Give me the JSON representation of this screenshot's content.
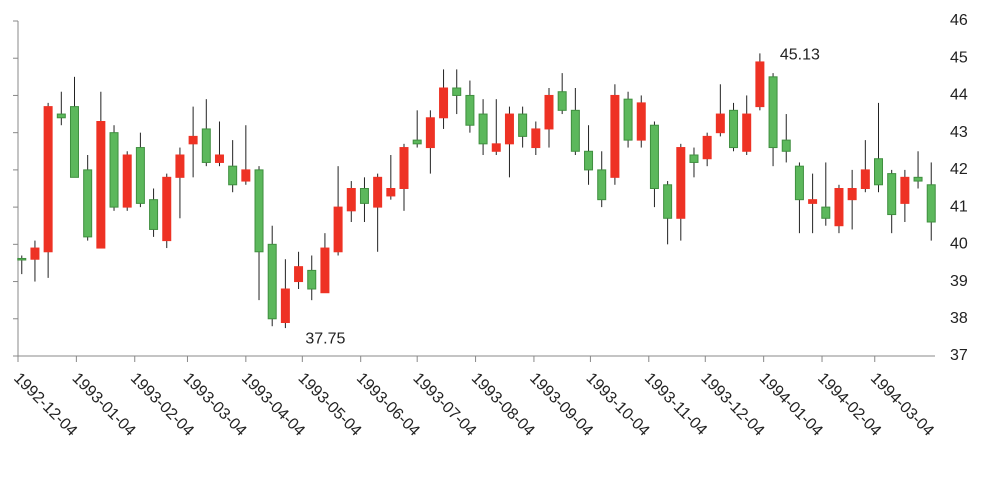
{
  "chart_data": {
    "type": "candlestick",
    "x": [
      "1992-12-06",
      "1992-12-13",
      "1992-12-20",
      "1992-12-27",
      "1993-01-03",
      "1993-01-10",
      "1993-01-17",
      "1993-01-24",
      "1993-01-31",
      "1993-02-07",
      "1993-02-14",
      "1993-02-21",
      "1993-02-28",
      "1993-03-07",
      "1993-03-14",
      "1993-03-21",
      "1993-03-28",
      "1993-04-04",
      "1993-04-11",
      "1993-04-18",
      "1993-04-25",
      "1993-05-02",
      "1993-05-09",
      "1993-05-16",
      "1993-05-23",
      "1993-05-30",
      "1993-06-06",
      "1993-06-13",
      "1993-06-20",
      "1993-06-27",
      "1993-07-04",
      "1993-07-11",
      "1993-07-18",
      "1993-07-25",
      "1993-08-01",
      "1993-08-08",
      "1993-08-15",
      "1993-08-22",
      "1993-08-29",
      "1993-09-05",
      "1993-09-12",
      "1993-09-19",
      "1993-09-26",
      "1993-10-03",
      "1993-10-10",
      "1993-10-17",
      "1993-10-24",
      "1993-10-31",
      "1993-11-07",
      "1993-11-14",
      "1993-11-21",
      "1993-11-28",
      "1993-12-05",
      "1993-12-12",
      "1993-12-19",
      "1993-12-26",
      "1994-01-02",
      "1994-01-09",
      "1994-01-16",
      "1994-01-23",
      "1994-01-30",
      "1994-02-06",
      "1994-02-13",
      "1994-02-20",
      "1994-02-27",
      "1994-03-06",
      "1994-03-13",
      "1994-03-20",
      "1994-03-27",
      "1994-04-03"
    ],
    "open": [
      39.62,
      39.6,
      39.8,
      43.5,
      43.7,
      42.0,
      39.9,
      43.0,
      41.0,
      42.6,
      41.2,
      40.1,
      41.8,
      42.7,
      43.1,
      42.2,
      42.1,
      41.7,
      42.0,
      40.0,
      37.9,
      39.0,
      39.3,
      38.7,
      39.8,
      40.9,
      41.5,
      41.0,
      41.3,
      41.5,
      42.8,
      42.6,
      43.4,
      44.2,
      44.0,
      43.5,
      42.5,
      42.7,
      43.5,
      42.6,
      43.1,
      44.1,
      43.6,
      42.5,
      42.0,
      41.8,
      43.9,
      42.8,
      43.2,
      41.6,
      40.7,
      42.4,
      42.3,
      43.0,
      43.6,
      42.5,
      43.7,
      44.5,
      42.8,
      42.1,
      41.1,
      41.0,
      40.5,
      41.2,
      41.5,
      42.3,
      41.9,
      41.1,
      41.8,
      41.6
    ],
    "high": [
      39.7,
      40.1,
      43.8,
      44.1,
      44.5,
      42.4,
      44.1,
      43.2,
      42.5,
      43.0,
      41.5,
      41.9,
      42.6,
      43.7,
      43.9,
      43.3,
      42.8,
      43.2,
      42.1,
      40.5,
      39.6,
      39.8,
      39.7,
      40.3,
      42.1,
      41.7,
      41.8,
      41.9,
      42.4,
      42.7,
      43.6,
      43.6,
      44.7,
      44.7,
      44.4,
      43.9,
      43.9,
      43.7,
      43.7,
      43.3,
      44.2,
      44.6,
      44.2,
      43.2,
      42.5,
      44.3,
      44.1,
      44.0,
      43.3,
      41.7,
      42.7,
      42.6,
      43.0,
      44.3,
      43.8,
      44.0,
      45.13,
      44.6,
      43.5,
      42.2,
      41.9,
      42.2,
      41.6,
      42.0,
      42.8,
      43.8,
      42.0,
      42.0,
      42.5,
      42.2
    ],
    "low": [
      39.2,
      39.0,
      39.1,
      43.2,
      41.8,
      40.1,
      39.9,
      40.9,
      40.9,
      41.0,
      40.2,
      39.9,
      40.7,
      41.8,
      42.1,
      42.1,
      41.4,
      41.6,
      38.5,
      37.8,
      37.75,
      38.8,
      38.5,
      38.7,
      39.7,
      40.6,
      40.6,
      39.8,
      41.2,
      40.9,
      42.6,
      41.9,
      43.1,
      43.5,
      43.0,
      42.4,
      42.4,
      41.8,
      42.6,
      42.4,
      42.6,
      43.5,
      42.4,
      41.6,
      41.0,
      41.6,
      42.6,
      42.6,
      41.0,
      40.0,
      40.1,
      41.8,
      42.1,
      42.9,
      42.5,
      42.4,
      43.6,
      42.1,
      42.2,
      40.3,
      40.3,
      40.5,
      40.3,
      40.4,
      41.4,
      41.4,
      40.3,
      40.6,
      41.5,
      40.1
    ],
    "close": [
      39.58,
      39.9,
      43.7,
      43.4,
      41.8,
      40.2,
      43.3,
      41.0,
      42.4,
      41.1,
      40.4,
      41.8,
      42.4,
      42.9,
      42.2,
      42.4,
      41.6,
      42.0,
      39.8,
      38.0,
      38.8,
      39.4,
      38.8,
      39.9,
      41.0,
      41.5,
      41.1,
      41.8,
      41.5,
      42.6,
      42.7,
      43.4,
      44.2,
      44.0,
      43.2,
      42.7,
      42.7,
      43.5,
      42.9,
      43.1,
      44.0,
      43.6,
      42.5,
      42.0,
      41.2,
      44.0,
      42.8,
      43.8,
      41.5,
      40.7,
      42.6,
      42.2,
      42.9,
      43.5,
      42.6,
      43.5,
      44.9,
      42.6,
      42.5,
      41.2,
      41.2,
      40.7,
      41.5,
      41.5,
      42.0,
      41.6,
      40.8,
      41.8,
      41.7,
      40.6
    ],
    "up_color": "#ee3224",
    "down_color": "#5cb85c",
    "xlim": [
      "1992-12-04",
      "1994-04-05"
    ],
    "xticks": [
      "1992-12-04",
      "1993-01-04",
      "1993-02-04",
      "1993-03-04",
      "1993-04-04",
      "1993-05-04",
      "1993-06-04",
      "1993-07-04",
      "1993-08-04",
      "1993-09-04",
      "1993-10-04",
      "1993-11-04",
      "1993-12-04",
      "1994-01-04",
      "1994-02-04",
      "1994-03-04"
    ],
    "ylim": [
      37,
      46
    ],
    "yticks": [
      37,
      38,
      39,
      40,
      41,
      42,
      43,
      44,
      45,
      46
    ],
    "annotations": [
      {
        "x": "1994-01-02",
        "value": 45.13
      },
      {
        "x": "1993-04-25",
        "value": 37.75
      }
    ]
  }
}
